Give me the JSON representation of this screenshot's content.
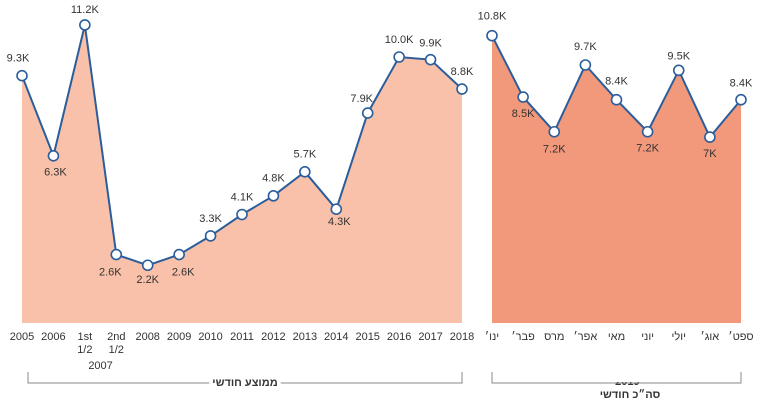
{
  "chart_data": [
    {
      "type": "area",
      "categories": [
        "2005",
        "2006",
        "1st\n1/2",
        "2nd\n1/2",
        "2008",
        "2009",
        "2010",
        "2011",
        "2012",
        "2013",
        "2014",
        "2015",
        "2016",
        "2017",
        "2018"
      ],
      "category_group": "2007",
      "values": [
        9.3,
        6.3,
        11.2,
        2.6,
        2.2,
        2.6,
        3.3,
        4.1,
        4.8,
        5.7,
        4.3,
        7.9,
        10.0,
        9.9,
        8.8
      ],
      "value_labels": [
        "9.3K",
        "6.3K",
        "11.2K",
        "2.6K",
        "2.2K",
        "2.6K",
        "3.3K",
        "4.1K",
        "4.8K",
        "5.7K",
        "4.3K",
        "7.9K",
        "10.0K",
        "9.9K",
        "8.8K"
      ],
      "caption": "ממוצע חודשי",
      "color": "#2b5d9b",
      "fill": "#f9c1a9"
    },
    {
      "type": "area",
      "categories": [
        "ינו׳",
        "פבר׳",
        "מרס",
        "אפר׳",
        "מאי",
        "יוני",
        "יולי",
        "אוג׳",
        "ספט׳"
      ],
      "category_group": "2019",
      "values": [
        10.8,
        8.5,
        7.2,
        9.7,
        8.4,
        7.2,
        9.5,
        7,
        8.4
      ],
      "value_labels": [
        "10.8K",
        "8.5K",
        "7.2K",
        "9.7K",
        "8.4K",
        "7.2K",
        "9.5K",
        "7K",
        "8.4K"
      ],
      "caption": "סה״כ חודשי",
      "color": "#2b5d9b",
      "fill": "#f2987b"
    }
  ]
}
